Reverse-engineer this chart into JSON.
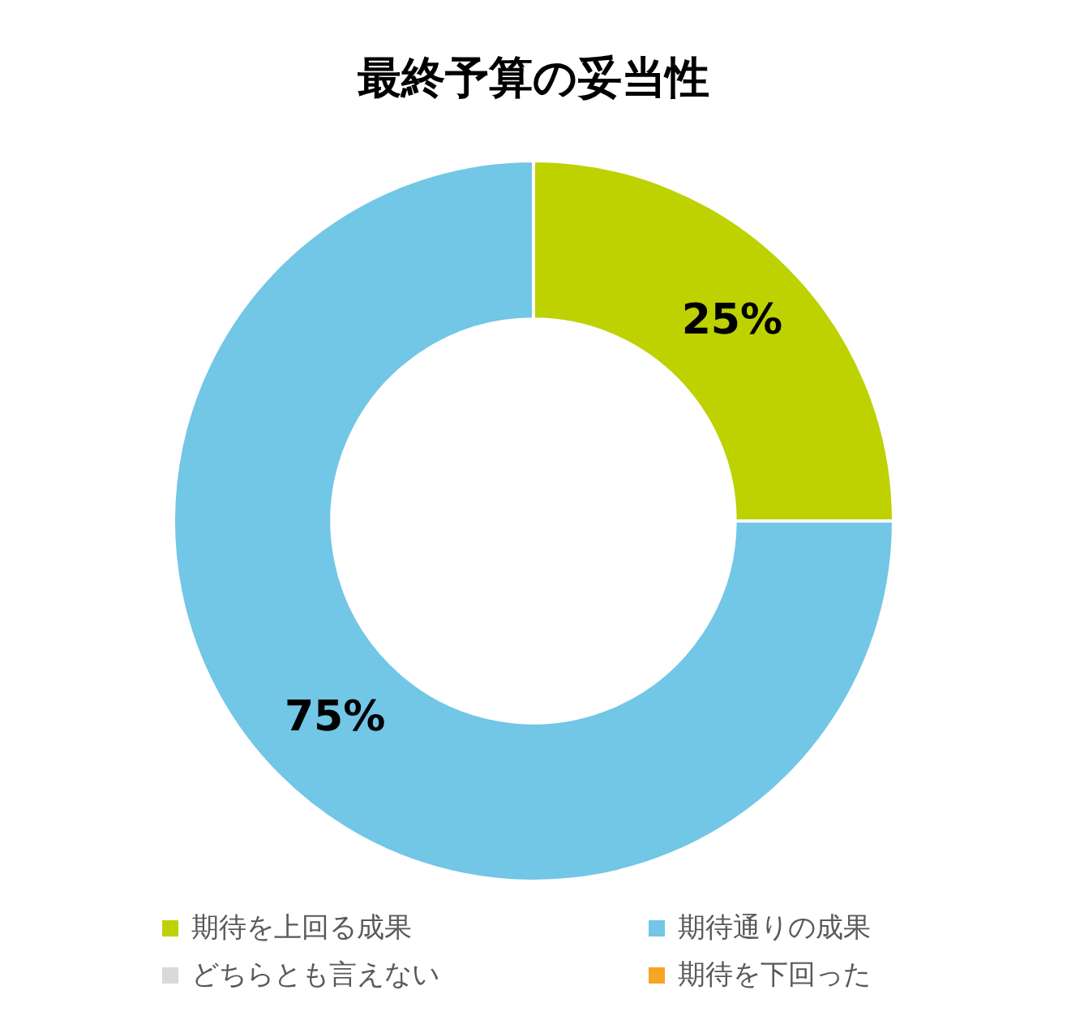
{
  "chart_data": {
    "type": "donut",
    "title": "最終予算の妥当性",
    "categories": [
      "期待を上回る成果",
      "期待通りの成果",
      "どちらとも言えない",
      "期待を下回った"
    ],
    "values": [
      25,
      75,
      0,
      0
    ],
    "colors": [
      "#bdd200",
      "#72c6e6",
      "#d9d9d9",
      "#f5a623"
    ],
    "value_labels": [
      "25%",
      "75%",
      null,
      null
    ],
    "legend": "bottom"
  }
}
